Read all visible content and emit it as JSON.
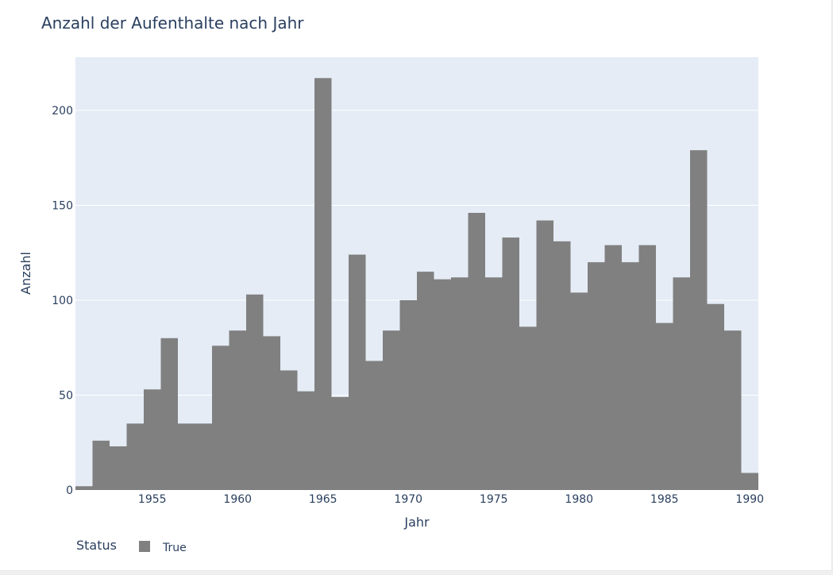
{
  "chart_data": {
    "type": "bar",
    "title": "Anzahl der Aufenthalte nach Jahr",
    "xlabel": "Jahr",
    "ylabel": "Anzahl",
    "xlim": [
      1950.5,
      1990.5
    ],
    "ylim": [
      0,
      228
    ],
    "x_ticks": [
      1955,
      1960,
      1965,
      1970,
      1975,
      1980,
      1985,
      1990
    ],
    "y_ticks": [
      0,
      50,
      100,
      150,
      200
    ],
    "grid": true,
    "legend": {
      "title": "Status",
      "placement": "bottom-left"
    },
    "categories": [
      1951,
      1952,
      1953,
      1954,
      1955,
      1956,
      1957,
      1958,
      1959,
      1960,
      1961,
      1962,
      1963,
      1964,
      1965,
      1966,
      1967,
      1968,
      1969,
      1970,
      1971,
      1972,
      1973,
      1974,
      1975,
      1976,
      1977,
      1978,
      1979,
      1980,
      1981,
      1982,
      1983,
      1984,
      1985,
      1986,
      1987,
      1988,
      1989,
      1990
    ],
    "series": [
      {
        "name": "True",
        "color": "#808080",
        "values": [
          2,
          26,
          23,
          35,
          53,
          80,
          35,
          35,
          76,
          84,
          103,
          81,
          63,
          52,
          217,
          49,
          124,
          68,
          84,
          100,
          115,
          111,
          112,
          146,
          112,
          133,
          86,
          142,
          131,
          104,
          120,
          129,
          120,
          129,
          88,
          112,
          179,
          98,
          84,
          9
        ]
      }
    ],
    "colors": {
      "plot_bg": "#e5ecf6",
      "grid": "#ffffff",
      "text": "#2a3f5f"
    }
  }
}
